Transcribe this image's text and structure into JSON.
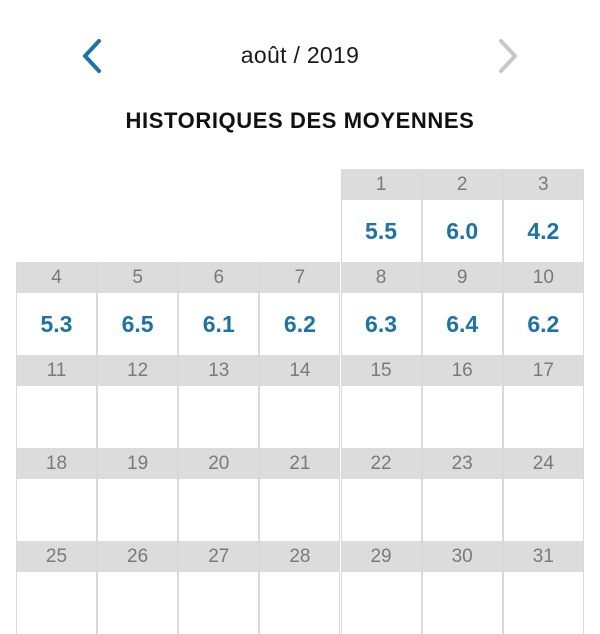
{
  "header": {
    "month_label": "août / 2019",
    "prev_icon": "chevron-left-icon",
    "next_icon": "chevron-right-icon",
    "prev_color": "#1b73a8",
    "next_color": "#c8c8c8"
  },
  "title": "HISTORIQUES DES MOYENNES",
  "calendar": {
    "start_offset": 4,
    "days_in_month": 31,
    "averages": {
      "1": "5.5",
      "2": "6.0",
      "3": "4.2",
      "4": "5.3",
      "5": "6.5",
      "6": "6.1",
      "7": "6.2",
      "8": "6.3",
      "9": "6.4",
      "10": "6.2"
    }
  },
  "colors": {
    "accent": "#1b73a8",
    "day_header_bg": "#dcdcdc",
    "day_header_text": "#7a7a7a"
  }
}
